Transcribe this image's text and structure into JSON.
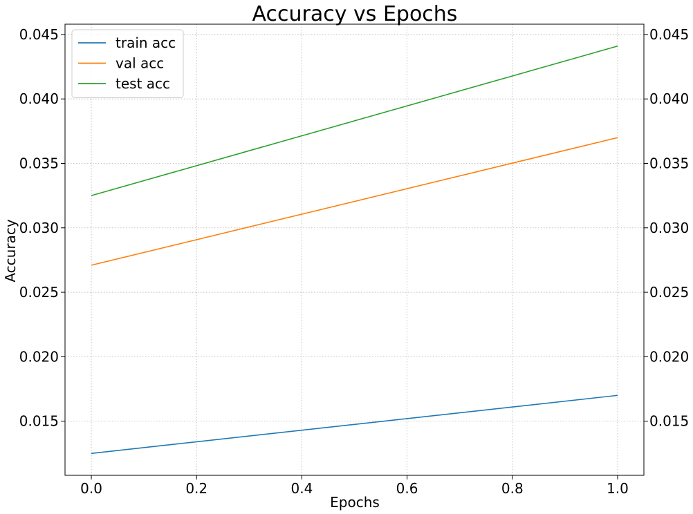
{
  "chart_data": {
    "type": "line",
    "title": "Accuracy vs Epochs",
    "xlabel": "Epochs",
    "ylabel": "Accuracy",
    "x": [
      0.0,
      1.0
    ],
    "xlim": [
      -0.05,
      1.05
    ],
    "ylim": [
      0.0108,
      0.0458
    ],
    "xticks": [
      0.0,
      0.2,
      0.4,
      0.6,
      0.8,
      1.0
    ],
    "xtick_labels": [
      "0.0",
      "0.2",
      "0.4",
      "0.6",
      "0.8",
      "1.0"
    ],
    "yticks": [
      0.015,
      0.02,
      0.025,
      0.03,
      0.035,
      0.04,
      0.045
    ],
    "ytick_labels": [
      "0.015",
      "0.020",
      "0.025",
      "0.030",
      "0.035",
      "0.040",
      "0.045"
    ],
    "right_axis_ticks_mirrored": true,
    "grid": true,
    "legend_position": "top-left",
    "series": [
      {
        "name": "train acc",
        "color": "#1f77b4",
        "values": [
          0.0125,
          0.017
        ]
      },
      {
        "name": "val acc",
        "color": "#ff7f0e",
        "values": [
          0.0271,
          0.037
        ]
      },
      {
        "name": "test acc",
        "color": "#2ca02c",
        "values": [
          0.0325,
          0.0441
        ]
      }
    ]
  }
}
